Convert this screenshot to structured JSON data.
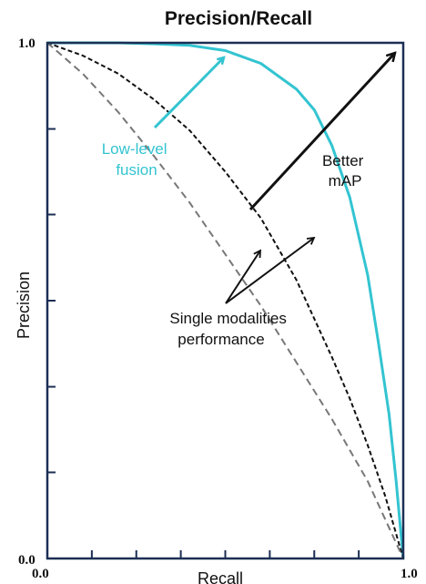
{
  "chart_data": {
    "type": "line",
    "title": "Precision/Recall",
    "xlabel": "Recall",
    "ylabel": "Precision",
    "xlim": [
      0,
      1
    ],
    "ylim": [
      0,
      1
    ],
    "x_ticks": [
      0,
      0.125,
      0.25,
      0.375,
      0.5,
      0.625,
      0.75,
      0.875,
      1.0
    ],
    "y_ticks": [
      0,
      0.167,
      0.333,
      0.5,
      0.667,
      0.833,
      1.0
    ],
    "x_tick_labels": [
      "0.0",
      "1.0"
    ],
    "y_tick_labels": [
      "0.0",
      "1.0"
    ],
    "grid": false,
    "series": [
      {
        "key": "fusion",
        "color": "#33c4d1",
        "dash": "solid",
        "x": [
          0,
          0.1,
          0.2,
          0.3,
          0.4,
          0.5,
          0.6,
          0.7,
          0.75,
          0.8,
          0.85,
          0.9,
          0.93,
          0.96,
          0.98,
          1.0
        ],
        "y": [
          1.0,
          1.0,
          1.0,
          0.998,
          0.995,
          0.985,
          0.96,
          0.91,
          0.87,
          0.8,
          0.7,
          0.55,
          0.42,
          0.28,
          0.15,
          0.0
        ]
      },
      {
        "key": "modality_a",
        "color": "#111111",
        "dash": "short",
        "x": [
          0,
          0.1,
          0.2,
          0.3,
          0.4,
          0.5,
          0.6,
          0.7,
          0.8,
          0.85,
          0.9,
          0.95,
          1.0
        ],
        "y": [
          1.0,
          0.975,
          0.94,
          0.89,
          0.83,
          0.75,
          0.66,
          0.54,
          0.39,
          0.31,
          0.22,
          0.12,
          0.0
        ]
      },
      {
        "key": "modality_b",
        "color": "#777777",
        "dash": "long",
        "x": [
          0,
          0.1,
          0.2,
          0.3,
          0.4,
          0.5,
          0.6,
          0.7,
          0.8,
          0.9,
          1.0
        ],
        "y": [
          1.0,
          0.94,
          0.865,
          0.78,
          0.69,
          0.59,
          0.49,
          0.38,
          0.27,
          0.15,
          0.0
        ]
      }
    ],
    "annotations": {
      "fusion_label": [
        "Low-level",
        "fusion"
      ],
      "single_label": [
        "Single modalities",
        "performance"
      ],
      "better_label": [
        "Better",
        "mAP"
      ]
    }
  },
  "colors": {
    "frame": "#1c2f54",
    "fusion_annotation": "#33c4d1",
    "text": "#111111"
  }
}
